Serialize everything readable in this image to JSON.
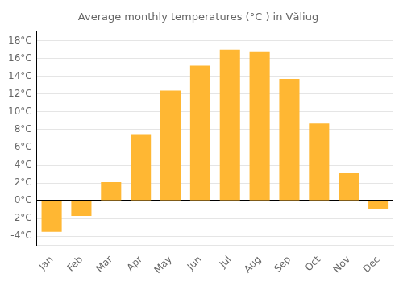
{
  "chart_data": {
    "type": "bar",
    "title": "Average monthly temperatures (°C ) in Văliug",
    "categories": [
      "Jan",
      "Feb",
      "Mar",
      "Apr",
      "May",
      "Jun",
      "Jul",
      "Aug",
      "Sep",
      "Oct",
      "Nov",
      "Dec"
    ],
    "values": [
      -3.5,
      -1.7,
      2.1,
      7.5,
      12.4,
      15.2,
      17.0,
      16.8,
      13.7,
      8.7,
      3.1,
      -0.9
    ],
    "color": "#FFB733",
    "ylim": [
      -5,
      19
    ],
    "yticks": [
      {
        "value": -4,
        "label": "-4°C"
      },
      {
        "value": -2,
        "label": "-2°C"
      },
      {
        "value": 0,
        "label": "0°C"
      },
      {
        "value": 2,
        "label": "2°C"
      },
      {
        "value": 4,
        "label": "4°C"
      },
      {
        "value": 6,
        "label": "6°C"
      },
      {
        "value": 8,
        "label": "8°C"
      },
      {
        "value": 10,
        "label": "10°C"
      },
      {
        "value": 12,
        "label": "12°C"
      },
      {
        "value": 14,
        "label": "14°C"
      },
      {
        "value": 16,
        "label": "16°C"
      },
      {
        "value": 18,
        "label": "18°C"
      }
    ],
    "grid": true
  }
}
